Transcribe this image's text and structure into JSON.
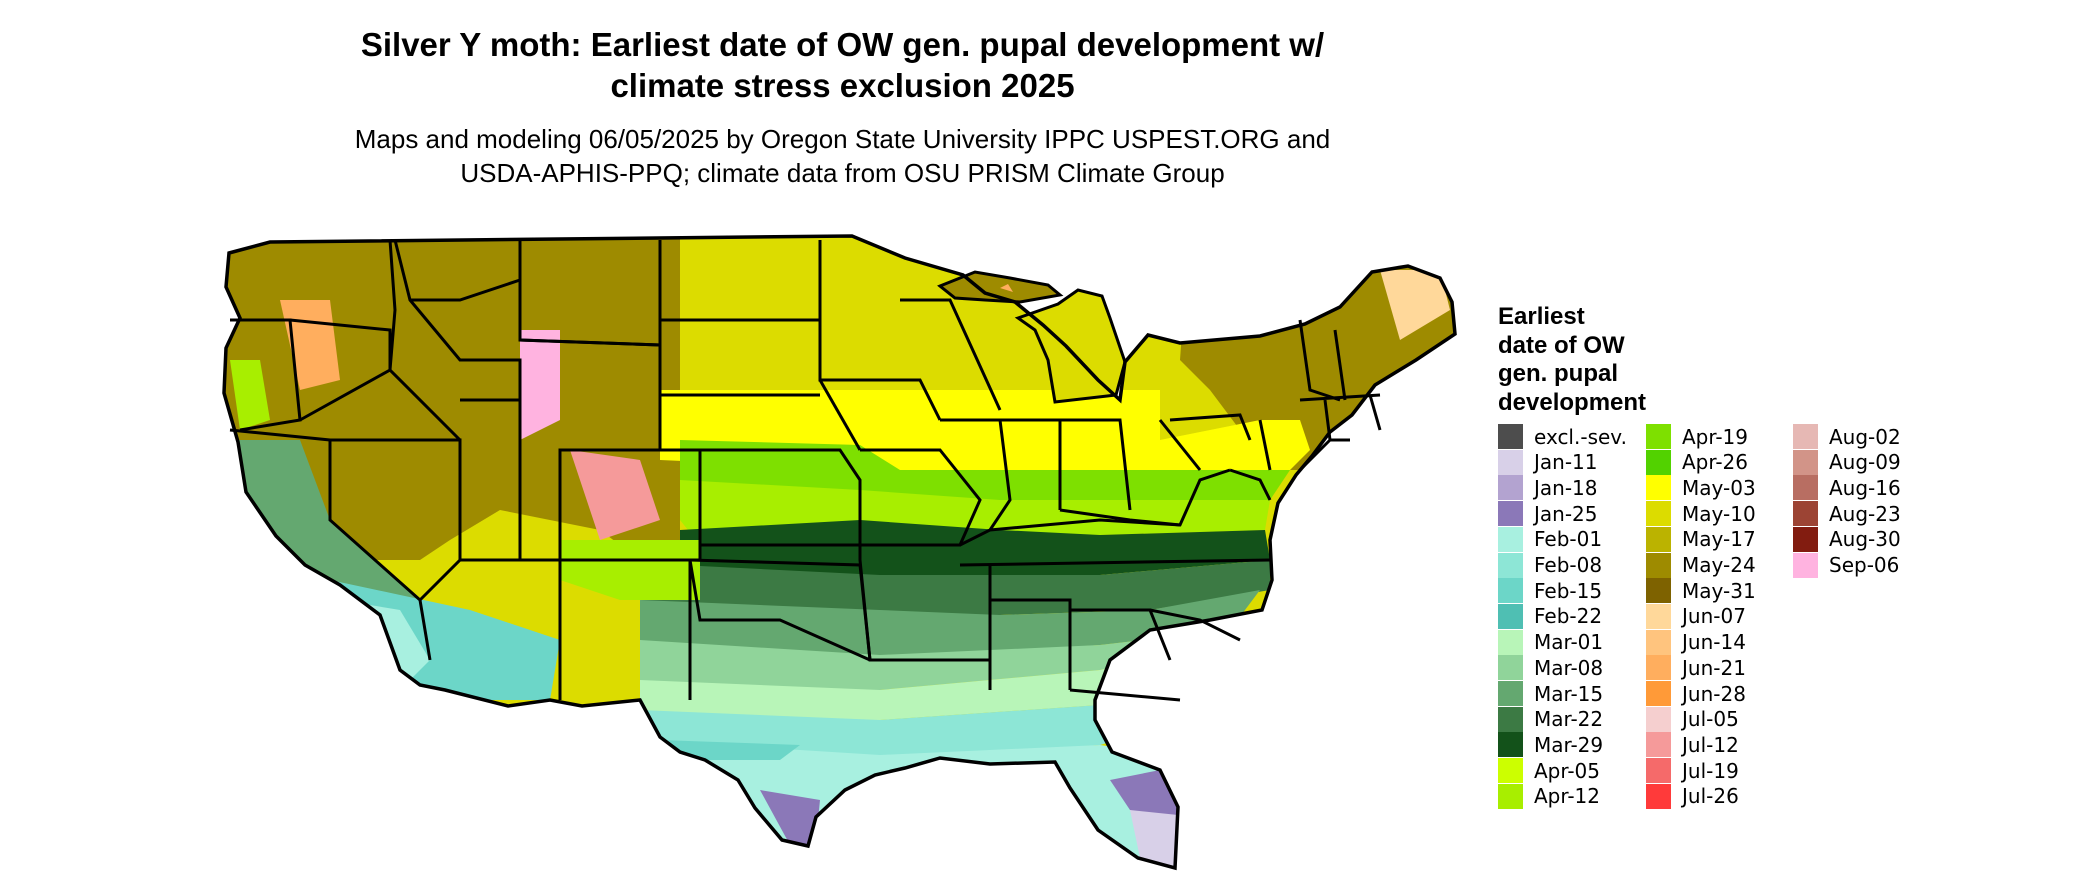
{
  "header": {
    "title_line1": "Silver Y moth: Earliest date of OW gen. pupal development w/",
    "title_line2": "climate stress exclusion 2025",
    "subtitle_line1": "Maps and modeling 06/05/2025 by Oregon State University IPPC USPEST.ORG and",
    "subtitle_line2": "USDA-APHIS-PPQ; climate data from OSU PRISM Climate Group"
  },
  "legend": {
    "title_lines": [
      "Earliest",
      "date of OW",
      "gen. pupal",
      "development"
    ],
    "items": [
      {
        "label": "excl.-sev.",
        "color": "#4d4d4d"
      },
      {
        "label": "Jan-11",
        "color": "#d8d0e8"
      },
      {
        "label": "Jan-18",
        "color": "#b3a3d0"
      },
      {
        "label": "Jan-25",
        "color": "#8b78b8"
      },
      {
        "label": "Feb-01",
        "color": "#a8f0e0"
      },
      {
        "label": "Feb-08",
        "color": "#8de6d6"
      },
      {
        "label": "Feb-15",
        "color": "#6cd6c8"
      },
      {
        "label": "Feb-22",
        "color": "#4fbfb3"
      },
      {
        "label": "Mar-01",
        "color": "#b8f5b8"
      },
      {
        "label": "Mar-08",
        "color": "#90d49a"
      },
      {
        "label": "Mar-15",
        "color": "#64a870"
      },
      {
        "label": "Mar-22",
        "color": "#3c7a44"
      },
      {
        "label": "Mar-29",
        "color": "#13521a"
      },
      {
        "label": "Apr-05",
        "color": "#ccff00"
      },
      {
        "label": "Apr-12",
        "color": "#a8ee00"
      },
      {
        "label": "Apr-19",
        "color": "#7ee000"
      },
      {
        "label": "Apr-26",
        "color": "#52d200"
      },
      {
        "label": "May-03",
        "color": "#ffff00"
      },
      {
        "label": "May-10",
        "color": "#dcdc00"
      },
      {
        "label": "May-17",
        "color": "#bbb300"
      },
      {
        "label": "May-24",
        "color": "#9e8b00"
      },
      {
        "label": "May-31",
        "color": "#7e6200"
      },
      {
        "label": "Jun-07",
        "color": "#ffd89a"
      },
      {
        "label": "Jun-14",
        "color": "#ffc47e"
      },
      {
        "label": "Jun-21",
        "color": "#ffae5e"
      },
      {
        "label": "Jun-28",
        "color": "#ff9a38"
      },
      {
        "label": "Jul-05",
        "color": "#f5cfcf"
      },
      {
        "label": "Jul-12",
        "color": "#f59a9a"
      },
      {
        "label": "Jul-19",
        "color": "#f56a6a"
      },
      {
        "label": "Jul-26",
        "color": "#ff3a3a"
      },
      {
        "label": "Aug-02",
        "color": "#e6b8b4"
      },
      {
        "label": "Aug-09",
        "color": "#d29488"
      },
      {
        "label": "Aug-16",
        "color": "#b86e62"
      },
      {
        "label": "Aug-23",
        "color": "#9c4434"
      },
      {
        "label": "Aug-30",
        "color": "#821c10"
      },
      {
        "label": "Sep-06",
        "color": "#ffb3e0"
      }
    ]
  }
}
